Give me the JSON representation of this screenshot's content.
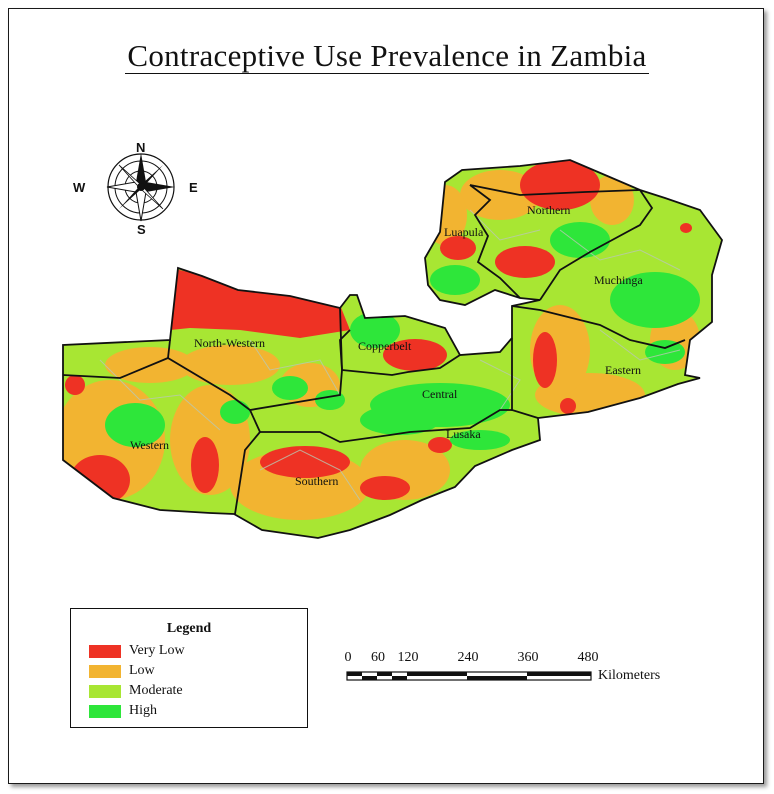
{
  "title": "Contraceptive Use Prevalence in Zambia",
  "compass": {
    "north": "N",
    "south": "S",
    "east": "E",
    "west": "W"
  },
  "regions": [
    "Northern",
    "Luapula",
    "Muchinga",
    "Copperbelt",
    "North-Western",
    "Central",
    "Eastern",
    "Lusaka",
    "Western",
    "Southern"
  ],
  "legend": {
    "title": "Legend",
    "items": [
      {
        "label": "Very Low",
        "color": "#ee3224"
      },
      {
        "label": "Low",
        "color": "#f2b431"
      },
      {
        "label": "Moderate",
        "color": "#a8e633"
      },
      {
        "label": "High",
        "color": "#2ee63a"
      }
    ]
  },
  "scale_bar": {
    "ticks": [
      "0",
      "60",
      "120",
      "240",
      "360",
      "480"
    ],
    "units": "Kilometers"
  }
}
